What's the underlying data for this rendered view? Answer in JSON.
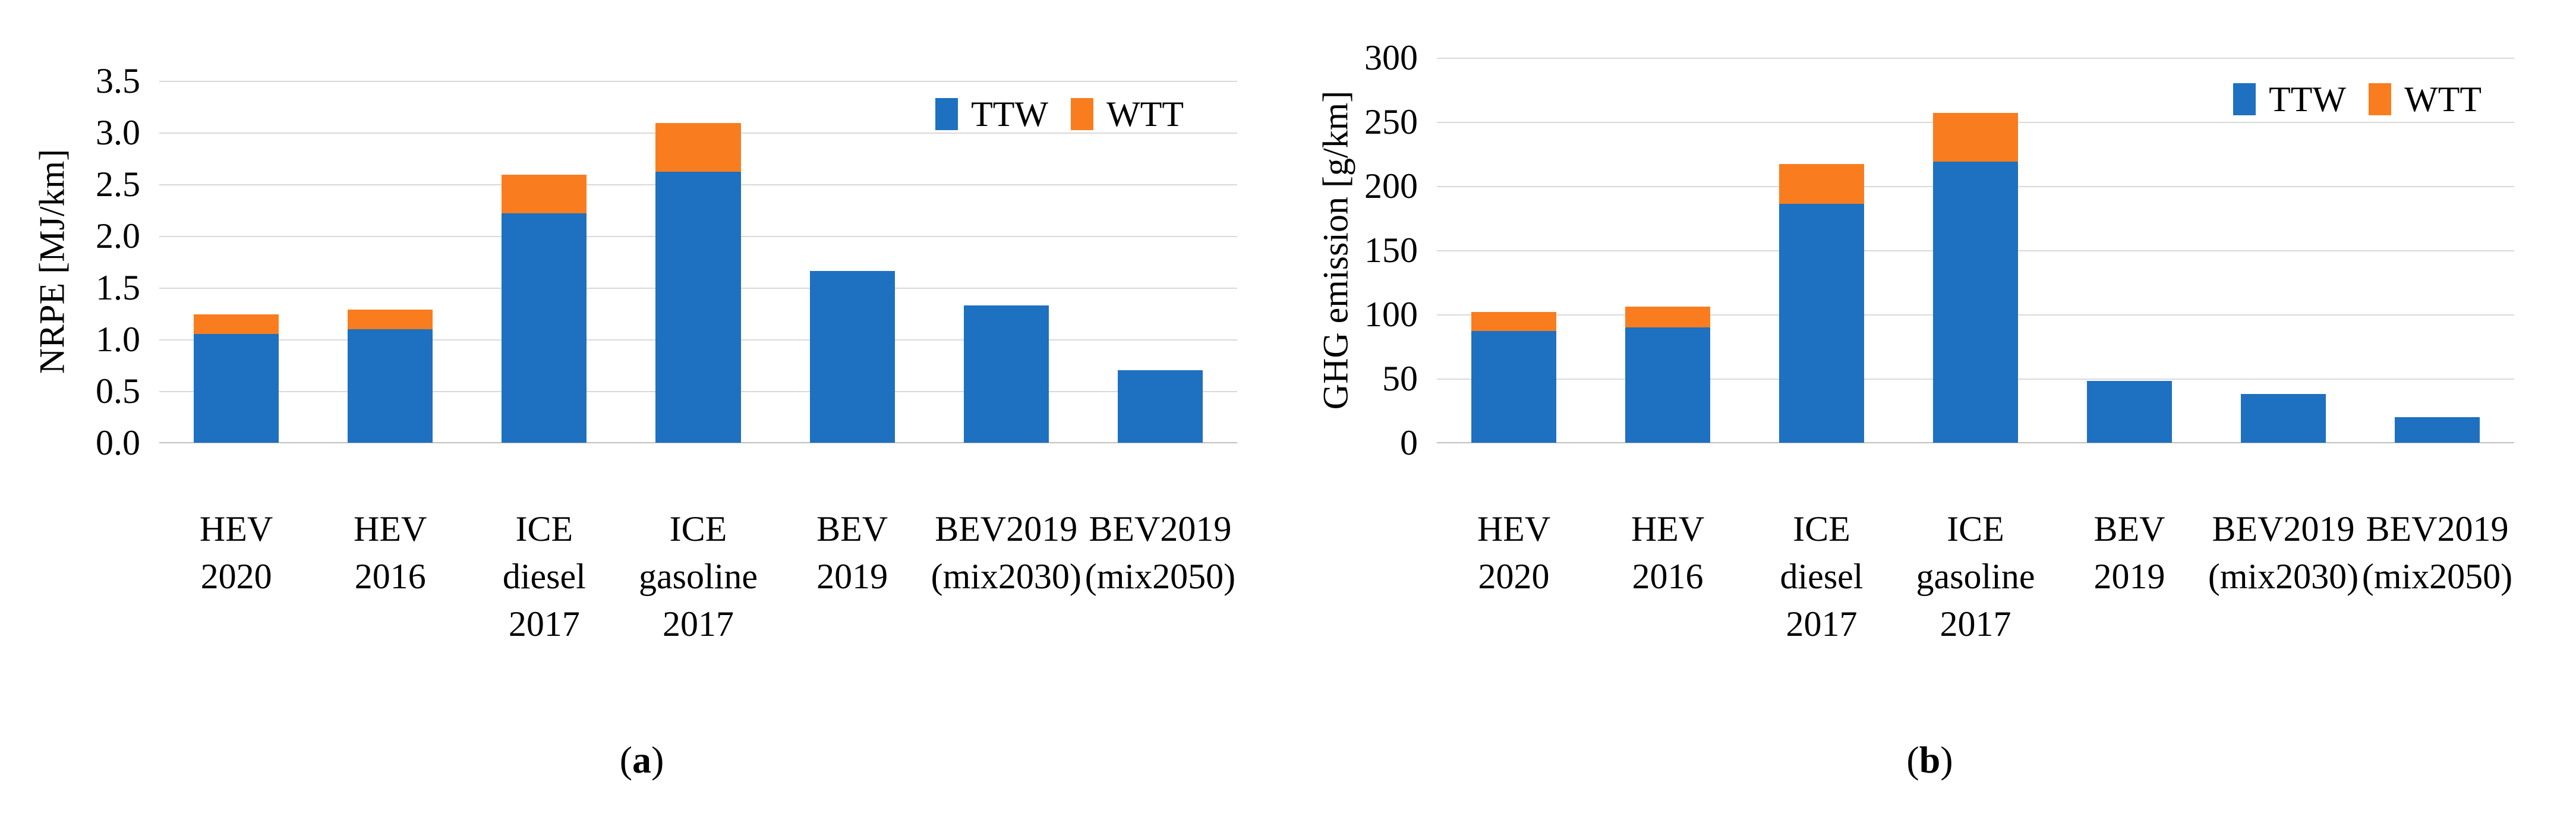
{
  "figure": {
    "captions": [
      {
        "open": "(",
        "letter": "a",
        "close": ")"
      },
      {
        "open": "(",
        "letter": "b",
        "close": ")"
      }
    ]
  },
  "colors": {
    "ttw_blue": "#1E70C1",
    "wtt_orange": "#F97D1E",
    "gridline": "#D9D9D9",
    "axis_line": "#BFBFBF",
    "text": "#000000",
    "background": "#FFFFFF"
  },
  "chart_data": [
    {
      "type": "bar",
      "stacked": true,
      "title": "",
      "xlabel": "",
      "ylabel": "NRPE [MJ/km]",
      "ylim": [
        0,
        3.5
      ],
      "grid": true,
      "legend_position": "top-right",
      "ytick_values": [
        0,
        0.5,
        1.0,
        1.5,
        2.0,
        2.5,
        3.0,
        3.5
      ],
      "ytick_labels": [
        "0.0",
        "0.5",
        "1.0",
        "1.5",
        "2.0",
        "2.5",
        "3.0",
        "3.5"
      ],
      "categories": [
        [
          "HEV",
          "2020"
        ],
        [
          "HEV",
          "2016"
        ],
        [
          "ICE",
          "diesel",
          "2017"
        ],
        [
          "ICE",
          "gasoline",
          "2017"
        ],
        [
          "BEV",
          "2019"
        ],
        [
          "BEV2019",
          "(mix2030)"
        ],
        [
          "BEV2019",
          "(mix2050)"
        ]
      ],
      "series": [
        {
          "name": "TTW",
          "color": "#1E70C1",
          "values": [
            1.05,
            1.1,
            2.22,
            2.62,
            1.66,
            1.33,
            0.7
          ]
        },
        {
          "name": "WTT",
          "color": "#F97D1E",
          "values": [
            0.19,
            0.19,
            0.37,
            0.47,
            0,
            0,
            0
          ]
        }
      ]
    },
    {
      "type": "bar",
      "stacked": true,
      "title": "",
      "xlabel": "",
      "ylabel": "GHG emission [g/km]",
      "ylim": [
        0,
        300
      ],
      "grid": true,
      "legend_position": "top-right",
      "ytick_values": [
        0,
        50,
        100,
        150,
        200,
        250,
        300
      ],
      "ytick_labels": [
        "0",
        "50",
        "100",
        "150",
        "200",
        "250",
        "300"
      ],
      "categories": [
        [
          "HEV",
          "2020"
        ],
        [
          "HEV",
          "2016"
        ],
        [
          "ICE",
          "diesel",
          "2017"
        ],
        [
          "ICE",
          "gasoline",
          "2017"
        ],
        [
          "BEV",
          "2019"
        ],
        [
          "BEV2019",
          "(mix2030)"
        ],
        [
          "BEV2019",
          "(mix2050)"
        ]
      ],
      "series": [
        {
          "name": "TTW",
          "color": "#1E70C1",
          "values": [
            87,
            90,
            186,
            219,
            48,
            38,
            20
          ]
        },
        {
          "name": "WTT",
          "color": "#F97D1E",
          "values": [
            15,
            16,
            31,
            38,
            0,
            0,
            0
          ]
        }
      ]
    }
  ]
}
